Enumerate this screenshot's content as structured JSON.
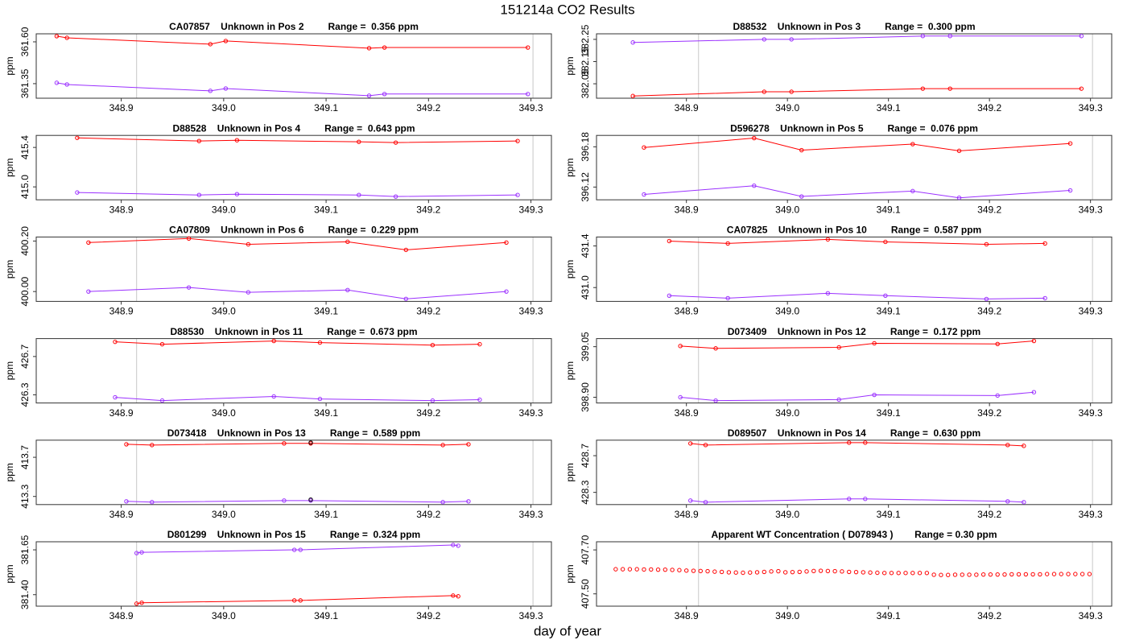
{
  "title": "151214a  CO2 Results",
  "xlabel": "day of year",
  "chart_data": [
    {
      "type": "line",
      "title": "CA07857    Unknown in Pos 2         Range =  0.356 ppm",
      "ylabel": "ppm",
      "xlim": [
        348.817,
        349.32
      ],
      "xticks": [
        348.9,
        {
          "value": 349,
          "label": "349.0"
        },
        349.1,
        349.2,
        349.3
      ],
      "ylim": [
        361.263,
        361.648
      ],
      "yticks": [
        361.35,
        {
          "value": 361.6,
          "label": "361.60"
        }
      ],
      "vlines": [
        348.915,
        349.302
      ],
      "series": [
        {
          "color": "#ff0000",
          "x": [
            348.837,
            348.847,
            348.987,
            349.002,
            349.142,
            349.157,
            349.297
          ],
          "values": [
            361.634,
            361.624,
            361.586,
            361.605,
            361.562,
            361.566,
            361.566
          ]
        },
        {
          "color": "#9b30ff",
          "x": [
            348.837,
            348.847,
            348.987,
            349.002,
            349.142,
            349.157,
            349.297
          ],
          "values": [
            361.355,
            361.345,
            361.307,
            361.321,
            361.278,
            361.288,
            361.288
          ]
        }
      ]
    },
    {
      "type": "line",
      "title": "D88532    Unknown in Pos 3         Range =  0.300 ppm",
      "ylabel": "ppm",
      "xlim": [
        348.811,
        349.321
      ],
      "xticks": [
        348.9,
        {
          "value": 349,
          "label": "349.0"
        },
        349.1,
        349.2,
        349.3
      ],
      "ylim": [
        381.985,
        382.275
      ],
      "yticks": [
        382.05,
        382.15,
        382.25
      ],
      "vlines": [
        348.912,
        349.302
      ],
      "series": [
        {
          "color": "#ff0000",
          "x": [
            348.847,
            348.977,
            349.004,
            349.134,
            349.161,
            349.291
          ],
          "values": [
            381.995,
            382.014,
            382.014,
            382.028,
            382.028,
            382.028
          ]
        },
        {
          "color": "#9b30ff",
          "x": [
            348.847,
            348.977,
            349.004,
            349.134,
            349.161,
            349.291
          ],
          "values": [
            382.236,
            382.25,
            382.25,
            382.265,
            382.265,
            382.265
          ]
        }
      ]
    },
    {
      "type": "line",
      "title": "D88528    Unknown in Pos 4         Range =  0.643 ppm",
      "ylabel": "ppm",
      "xlim": [
        348.817,
        349.32
      ],
      "xticks": [
        348.9,
        {
          "value": 349,
          "label": "349.0"
        },
        349.1,
        349.2,
        349.3
      ],
      "ylim": [
        414.869,
        415.522
      ],
      "yticks": [
        {
          "value": 415,
          "label": "415.0"
        },
        415.4
      ],
      "vlines": [
        348.915,
        349.302
      ],
      "series": [
        {
          "color": "#ff0000",
          "x": [
            348.857,
            348.976,
            349.013,
            349.132,
            349.168,
            349.287
          ],
          "values": [
            415.497,
            415.465,
            415.473,
            415.457,
            415.449,
            415.465
          ]
        },
        {
          "color": "#9b30ff",
          "x": [
            348.857,
            348.976,
            349.013,
            349.132,
            349.168,
            349.287
          ],
          "values": [
            414.943,
            414.918,
            414.926,
            414.918,
            414.902,
            414.918
          ]
        }
      ]
    },
    {
      "type": "line",
      "title": "D596278    Unknown in Pos 5         Range =  0.076 ppm",
      "ylabel": "ppm",
      "xlim": [
        348.811,
        349.321
      ],
      "xticks": [
        348.9,
        {
          "value": 349,
          "label": "349.0"
        },
        349.1,
        349.2,
        349.3
      ],
      "ylim": [
        396.101,
        396.197
      ],
      "yticks": [
        396.12,
        396.18
      ],
      "vlines": [
        348.912,
        349.302
      ],
      "series": [
        {
          "color": "#ff0000",
          "x": [
            348.858,
            348.967,
            349.014,
            349.124,
            349.17,
            349.28
          ],
          "values": [
            396.179,
            396.193,
            396.175,
            396.184,
            396.174,
            396.185
          ]
        },
        {
          "color": "#9b30ff",
          "x": [
            348.858,
            348.967,
            349.014,
            349.124,
            349.17,
            349.28
          ],
          "values": [
            396.109,
            396.122,
            396.106,
            396.114,
            396.104,
            396.115
          ]
        }
      ]
    },
    {
      "type": "line",
      "title": "CA07809    Unknown in Pos 6         Range =  0.229 ppm",
      "ylabel": "ppm",
      "xlim": [
        348.817,
        349.32
      ],
      "xticks": [
        348.9,
        {
          "value": 349,
          "label": "349.0"
        },
        349.1,
        349.2,
        349.3
      ],
      "ylim": [
        399.961,
        400.216
      ],
      "yticks": [
        {
          "value": 400,
          "label": "400.00"
        },
        {
          "value": 400.2,
          "label": "400.20"
        }
      ],
      "vlines": [
        348.915,
        349.302
      ],
      "series": [
        {
          "color": "#ff0000",
          "x": [
            348.868,
            348.966,
            349.024,
            349.121,
            349.178,
            349.276
          ],
          "values": [
            400.194,
            400.21,
            400.187,
            400.197,
            400.165,
            400.194
          ]
        },
        {
          "color": "#9b30ff",
          "x": [
            348.868,
            348.966,
            349.024,
            349.121,
            349.178,
            349.276
          ],
          "values": [
            400.0,
            400.016,
            399.997,
            400.006,
            399.971,
            400.0
          ]
        }
      ]
    },
    {
      "type": "line",
      "title": "CA07825    Unknown in Pos 10         Range =  0.587 ppm",
      "ylabel": "ppm",
      "xlim": [
        348.811,
        349.321
      ],
      "xticks": [
        348.9,
        {
          "value": 349,
          "label": "349.0"
        },
        349.1,
        349.2,
        349.3
      ],
      "ylim": [
        430.867,
        431.486
      ],
      "yticks": [
        {
          "value": 431,
          "label": "431.0"
        },
        431.4
      ],
      "vlines": [
        348.912,
        349.302
      ],
      "series": [
        {
          "color": "#ff0000",
          "x": [
            348.883,
            348.941,
            349.04,
            349.097,
            349.197,
            349.255
          ],
          "values": [
            431.447,
            431.424,
            431.463,
            431.439,
            431.416,
            431.424
          ]
        },
        {
          "color": "#9b30ff",
          "x": [
            348.883,
            348.941,
            349.04,
            349.097,
            349.197,
            349.255
          ],
          "values": [
            430.922,
            430.898,
            430.945,
            430.922,
            430.89,
            430.898
          ]
        }
      ]
    },
    {
      "type": "line",
      "title": "D88530    Unknown in Pos 11         Range =  0.673 ppm",
      "ylabel": "ppm",
      "xlim": [
        348.817,
        349.32
      ],
      "xticks": [
        348.9,
        {
          "value": 349,
          "label": "349.0"
        },
        349.1,
        349.2,
        349.3
      ],
      "ylim": [
        426.215,
        426.887
      ],
      "yticks": [
        426.3,
        426.7
      ],
      "vlines": [
        348.915,
        349.302
      ],
      "series": [
        {
          "color": "#ff0000",
          "x": [
            348.894,
            348.94,
            349.049,
            349.094,
            349.204,
            349.25
          ],
          "values": [
            426.853,
            426.828,
            426.862,
            426.845,
            426.819,
            426.828
          ]
        },
        {
          "color": "#9b30ff",
          "x": [
            348.894,
            348.94,
            349.049,
            349.094,
            349.204,
            349.25
          ],
          "values": [
            426.274,
            426.24,
            426.283,
            426.257,
            426.24,
            426.249
          ]
        }
      ]
    },
    {
      "type": "line",
      "title": "D073409    Unknown in Pos 12         Range =  0.172 ppm",
      "ylabel": "ppm",
      "xlim": [
        348.811,
        349.321
      ],
      "xticks": [
        348.9,
        {
          "value": 349,
          "label": "349.0"
        },
        349.1,
        349.2,
        349.3
      ],
      "ylim": [
        398.883,
        399.074
      ],
      "yticks": [
        {
          "value": 398.9,
          "label": "398.90"
        },
        399.05
      ],
      "vlines": [
        348.912,
        349.302
      ],
      "series": [
        {
          "color": "#ff0000",
          "x": [
            348.894,
            348.929,
            349.051,
            349.086,
            349.208,
            349.244
          ],
          "values": [
            399.052,
            399.045,
            399.048,
            399.06,
            399.058,
            399.067
          ]
        },
        {
          "color": "#9b30ff",
          "x": [
            348.894,
            348.929,
            349.051,
            349.086,
            349.208,
            349.244
          ],
          "values": [
            398.9,
            398.89,
            398.893,
            398.907,
            398.905,
            398.915
          ]
        }
      ]
    },
    {
      "type": "line",
      "title": "D073418    Unknown in Pos 13         Range =  0.589 ppm",
      "ylabel": "ppm",
      "xlim": [
        348.817,
        349.32
      ],
      "xticks": [
        348.9,
        {
          "value": 349,
          "label": "349.0"
        },
        349.1,
        349.2,
        349.3
      ],
      "ylim": [
        413.217,
        413.875
      ],
      "yticks": [
        413.3,
        413.7
      ],
      "vlines": [
        348.915,
        349.302
      ],
      "series": [
        {
          "color": "#ff0000",
          "x": [
            348.905,
            348.93,
            349.059,
            349.085,
            349.214,
            349.239
          ],
          "values": [
            413.833,
            413.825,
            413.842,
            413.842,
            413.825,
            413.833
          ]
        },
        {
          "color": "#9b30ff",
          "x": [
            348.905,
            348.93,
            349.059,
            349.085,
            349.214,
            349.239
          ],
          "values": [
            413.25,
            413.242,
            413.258,
            413.258,
            413.242,
            413.25
          ]
        },
        {
          "color": "#000000",
          "lines": false,
          "x": [
            349.085,
            349.085
          ],
          "values": [
            413.85,
            413.267
          ]
        }
      ]
    },
    {
      "type": "line",
      "title": "D089507    Unknown in Pos 14         Range =  0.630 ppm",
      "ylabel": "ppm",
      "xlim": [
        348.811,
        349.321
      ],
      "xticks": [
        348.9,
        {
          "value": 349,
          "label": "349.0"
        },
        349.1,
        349.2,
        349.3
      ],
      "ylim": [
        428.167,
        428.869
      ],
      "yticks": [
        428.3,
        428.7
      ],
      "vlines": [
        348.912,
        349.302
      ],
      "series": [
        {
          "color": "#ff0000",
          "x": [
            348.904,
            348.919,
            349.061,
            349.077,
            349.218,
            349.234
          ],
          "values": [
            428.833,
            428.816,
            428.842,
            428.842,
            428.816,
            428.807
          ]
        },
        {
          "color": "#9b30ff",
          "x": [
            348.904,
            348.919,
            349.061,
            349.077,
            349.218,
            349.234
          ],
          "values": [
            428.211,
            428.193,
            428.229,
            428.229,
            428.202,
            428.193
          ]
        }
      ]
    },
    {
      "type": "line",
      "title": "D801299    Unknown in Pos 15         Range =  0.324 ppm",
      "ylabel": "ppm",
      "xlim": [
        348.817,
        349.32
      ],
      "xticks": [
        348.9,
        {
          "value": 349,
          "label": "349.0"
        },
        349.1,
        349.2,
        349.3
      ],
      "ylim": [
        381.336,
        381.695
      ],
      "yticks": [
        {
          "value": 381.4,
          "label": "381.40"
        },
        381.65
      ],
      "vlines": [
        348.915,
        349.302
      ],
      "series": [
        {
          "color": "#9b30ff",
          "x": [
            348.915,
            348.92,
            349.069,
            349.075,
            349.224,
            349.229
          ],
          "values": [
            381.632,
            381.636,
            381.65,
            381.65,
            381.677,
            381.673
          ]
        },
        {
          "color": "#ff0000",
          "x": [
            348.915,
            348.92,
            349.069,
            349.075,
            349.224,
            349.229
          ],
          "values": [
            381.35,
            381.355,
            381.368,
            381.368,
            381.395,
            381.391
          ]
        }
      ]
    },
    {
      "type": "scatter",
      "title": "Apparent WT Concentration ( D078943 )        Range = 0.30 ppm",
      "ylabel": "ppm",
      "xlim": [
        348.811,
        349.321
      ],
      "xticks": [
        348.9,
        {
          "value": 349,
          "label": "349.0"
        },
        349.1,
        349.2,
        349.3
      ],
      "ylim": [
        407.444,
        407.737
      ],
      "yticks": [
        {
          "value": 407.5,
          "label": "407.50"
        },
        {
          "value": 407.7,
          "label": "407.70"
        }
      ],
      "vlines": [
        348.912,
        349.302
      ],
      "series": [
        {
          "color": "#ff0000",
          "x": [
            348.83,
            348.837,
            348.844,
            348.851,
            348.858,
            348.865,
            348.872,
            348.879,
            348.886,
            348.893,
            348.9,
            348.907,
            348.914,
            348.921,
            348.928,
            348.935,
            348.942,
            348.949,
            348.956,
            348.963,
            348.97,
            348.977,
            348.984,
            348.991,
            348.998,
            349.005,
            349.012,
            349.019,
            349.026,
            349.033,
            349.04,
            349.047,
            349.054,
            349.061,
            349.068,
            349.075,
            349.082,
            349.089,
            349.096,
            349.103,
            349.11,
            349.117,
            349.124,
            349.131,
            349.138,
            349.145,
            349.152,
            349.159,
            349.166,
            349.173,
            349.18,
            349.187,
            349.194,
            349.201,
            349.208,
            349.215,
            349.222,
            349.229,
            349.236,
            349.243,
            349.25,
            349.257,
            349.264,
            349.271,
            349.278,
            349.285,
            349.292,
            349.299
          ],
          "values": [
            407.612,
            407.612,
            407.612,
            407.612,
            407.611,
            407.611,
            407.61,
            407.61,
            407.609,
            407.608,
            407.606,
            407.605,
            407.604,
            407.603,
            407.601,
            407.6,
            407.598,
            407.597,
            407.596,
            407.597,
            407.598,
            407.6,
            407.602,
            407.603,
            407.598,
            407.599,
            407.6,
            407.602,
            407.604,
            407.605,
            407.604,
            407.603,
            407.602,
            407.6,
            407.599,
            407.598,
            407.597,
            407.596,
            407.595,
            407.595,
            407.595,
            407.595,
            407.595,
            407.595,
            407.595,
            407.587,
            407.586,
            407.586,
            407.587,
            407.587,
            407.587,
            407.587,
            407.588,
            407.588,
            407.588,
            407.588,
            407.589,
            407.589,
            407.589,
            407.589,
            407.589,
            407.59,
            407.59,
            407.59,
            407.59,
            407.59,
            407.59,
            407.59
          ]
        }
      ]
    }
  ]
}
